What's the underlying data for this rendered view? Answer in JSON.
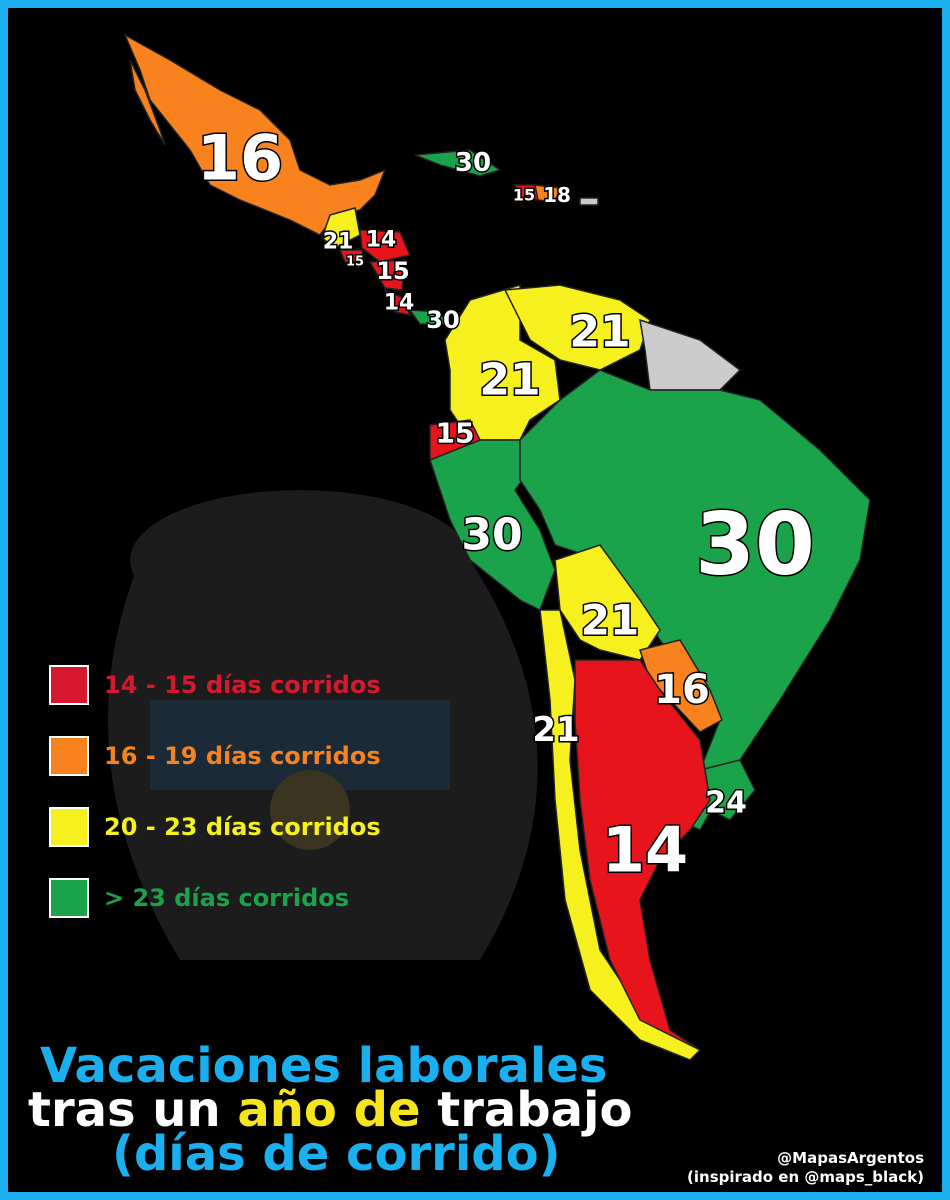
{
  "map_labels": [
    16,
    30,
    15,
    18,
    21,
    14,
    15,
    15,
    14,
    30,
    21,
    21,
    15,
    30,
    30,
    21,
    16,
    21,
    24,
    14
  ],
  "legend": [
    {
      "label": "14 - 15 días corridos",
      "color": "#d7192f"
    },
    {
      "label": "16 - 19 días corridos",
      "color": "#f7821e"
    },
    {
      "label": "20 - 23 días corridos",
      "color": "#f5f01e"
    },
    {
      "label": "> 23 días corridos",
      "color": "#1aa34a"
    }
  ],
  "title": {
    "line1": "Vacaciones laborales",
    "line2_a": "tras un",
    "line2_b": "año de",
    "line2_c": "trabajo",
    "line3": "(días de corrido)"
  },
  "credits": {
    "author": "@MapasArgentos",
    "inspired": "(inspirado en @maps_black)"
  }
}
